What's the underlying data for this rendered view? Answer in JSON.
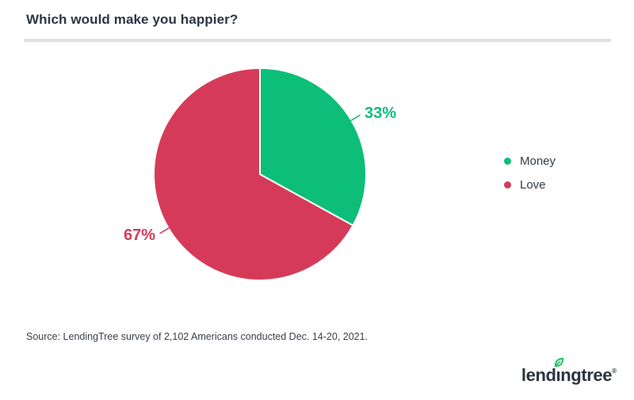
{
  "header": {
    "title": "Which would make you happier?"
  },
  "chart_data": {
    "type": "pie",
    "title": "Which would make you happier?",
    "categories": [
      "Money",
      "Love"
    ],
    "values": [
      33,
      67
    ],
    "value_unit": "percent",
    "data_labels": [
      "33%",
      "67%"
    ],
    "slice_colors": [
      "#0cbe78",
      "#d53b58"
    ],
    "start_angle_deg": 0,
    "direction": "clockwise",
    "legend_position": "right",
    "legend": [
      {
        "label": "Money",
        "color": "#0cbe78"
      },
      {
        "label": "Love",
        "color": "#d53b58"
      }
    ]
  },
  "footer": {
    "source": "Source: LendingTree survey of 2,102 Americans conducted Dec. 14-20, 2021.",
    "logo": {
      "text": "lendingtree",
      "pre": "lend",
      "dotless_i": "ı",
      "post": "ngtree",
      "registered": "®",
      "leaf_color": "#24c161",
      "text_color": "#2a3440"
    }
  }
}
